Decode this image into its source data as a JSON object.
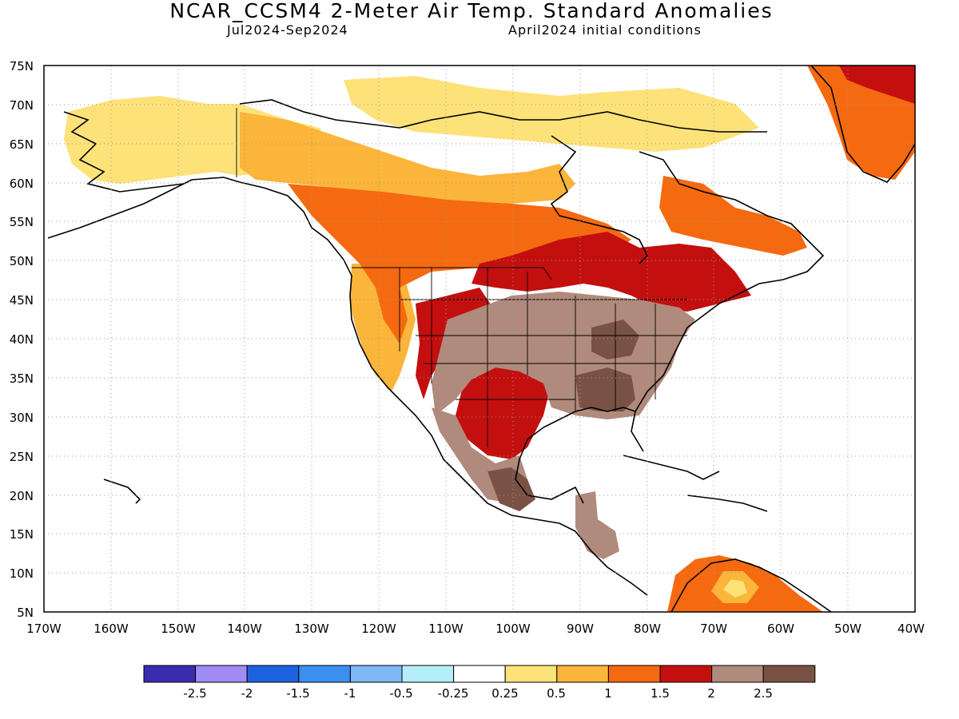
{
  "header": {
    "title": "NCAR_CCSM4 2-Meter Air Temp. Standard Anomalies",
    "period": "Jul2024-Sep2024",
    "init": "April2024 initial conditions"
  },
  "map": {
    "lat_labels": [
      "75N",
      "70N",
      "65N",
      "60N",
      "55N",
      "50N",
      "45N",
      "40N",
      "35N",
      "30N",
      "25N",
      "20N",
      "15N",
      "10N",
      "5N"
    ],
    "lon_labels": [
      "170W",
      "160W",
      "150W",
      "140W",
      "130W",
      "120W",
      "110W",
      "100W",
      "90W",
      "80W",
      "70W",
      "60W",
      "50W",
      "40W"
    ]
  },
  "colorbar": {
    "colors": [
      "#3a2bb0",
      "#a08cf2",
      "#1d63e0",
      "#3b8ff0",
      "#7db8f4",
      "#b4eefa",
      "#ffffff",
      "#fde27a",
      "#fab53a",
      "#f56a10",
      "#c40f0f",
      "#b08a7c",
      "#7a5245"
    ],
    "tick_labels": [
      "-2.5",
      "-2",
      "-1.5",
      "-1",
      "-0.5",
      "-0.25",
      "0.25",
      "0.5",
      "1",
      "1.5",
      "2",
      "2.5"
    ]
  }
}
